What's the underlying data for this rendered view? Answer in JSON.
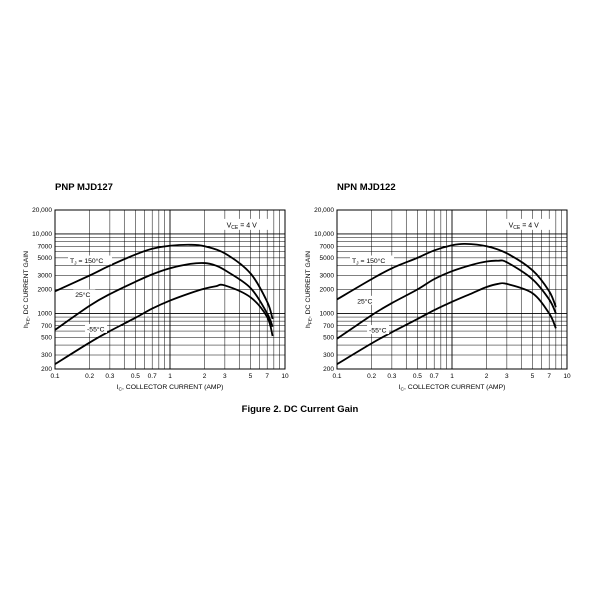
{
  "figure_caption": "Figure 2. DC Current Gain",
  "chart_data": [
    {
      "type": "line",
      "title": "PNP MJD127",
      "xlabel_prefix": "I",
      "xlabel_sub": "C",
      "xlabel_rest": ", COLLECTOR CURRENT (AMP)",
      "ylabel_prefix": "h",
      "ylabel_sub": "FE",
      "ylabel_rest": ", DC CURRENT GAIN",
      "x_scale": "log",
      "y_scale": "log",
      "xlim": [
        0.1,
        10
      ],
      "ylim": [
        200,
        20000
      ],
      "x_ticks": [
        0.1,
        0.2,
        0.3,
        0.5,
        0.7,
        1,
        2,
        3,
        5,
        7,
        10
      ],
      "x_tick_labels": [
        "0.1",
        "0.2",
        "0.3",
        "0.5",
        "0.7",
        "1",
        "2",
        "3",
        "5",
        "7",
        "10"
      ],
      "y_ticks": [
        200,
        300,
        500,
        700,
        1000,
        2000,
        3000,
        5000,
        7000,
        10000,
        20000
      ],
      "y_tick_labels": [
        "200",
        "300",
        "500",
        "700",
        "1000",
        "2000",
        "3000",
        "5000",
        "7000",
        "10,000",
        "20,000"
      ],
      "grid": true,
      "condition_prefix": "V",
      "condition_sub": "CE",
      "condition_rest": " = 4 V",
      "series": [
        {
          "name": "T_J = 150°C",
          "label_prefix": "T",
          "label_sub": "J",
          "label_rest": " = 150°C",
          "label_at": [
            0.135,
            4500
          ],
          "points": [
            [
              0.1,
              1900
            ],
            [
              0.2,
              3000
            ],
            [
              0.3,
              4000
            ],
            [
              0.5,
              5500
            ],
            [
              0.7,
              6500
            ],
            [
              1,
              7100
            ],
            [
              1.5,
              7300
            ],
            [
              2,
              7000
            ],
            [
              3,
              5700
            ],
            [
              5,
              3200
            ],
            [
              7,
              1400
            ],
            [
              7.8,
              850
            ]
          ]
        },
        {
          "name": "25°C",
          "label_prefix": "25°C",
          "label_sub": "",
          "label_rest": "",
          "label_at": [
            0.15,
            1680
          ],
          "points": [
            [
              0.1,
              620
            ],
            [
              0.2,
              1250
            ],
            [
              0.3,
              1750
            ],
            [
              0.5,
              2500
            ],
            [
              0.7,
              3100
            ],
            [
              1,
              3700
            ],
            [
              1.5,
              4200
            ],
            [
              2,
              4300
            ],
            [
              2.5,
              4000
            ],
            [
              3,
              3500
            ],
            [
              5,
              2100
            ],
            [
              7,
              1000
            ],
            [
              7.8,
              680
            ]
          ]
        },
        {
          "name": "-55°C",
          "label_prefix": "-55°C",
          "label_sub": "",
          "label_rest": "",
          "label_at": [
            0.19,
            620
          ],
          "points": [
            [
              0.1,
              230
            ],
            [
              0.2,
              430
            ],
            [
              0.3,
              600
            ],
            [
              0.5,
              880
            ],
            [
              0.7,
              1150
            ],
            [
              1,
              1450
            ],
            [
              1.5,
              1800
            ],
            [
              2,
              2050
            ],
            [
              2.5,
              2200
            ],
            [
              3,
              2250
            ],
            [
              5,
              1600
            ],
            [
              7,
              900
            ],
            [
              7.8,
              520
            ]
          ]
        }
      ]
    },
    {
      "type": "line",
      "title": "NPN MJD122",
      "xlabel_prefix": "I",
      "xlabel_sub": "C",
      "xlabel_rest": ", COLLECTOR CURRENT (AMP)",
      "ylabel_prefix": "h",
      "ylabel_sub": "FE",
      "ylabel_rest": ", DC CURRENT GAIN",
      "x_scale": "log",
      "y_scale": "log",
      "xlim": [
        0.1,
        10
      ],
      "ylim": [
        200,
        20000
      ],
      "x_ticks": [
        0.1,
        0.2,
        0.3,
        0.5,
        0.7,
        1,
        2,
        3,
        5,
        7,
        10
      ],
      "x_tick_labels": [
        "0.1",
        "0.2",
        "0.3",
        "0.5",
        "0.7",
        "1",
        "2",
        "3",
        "5",
        "7",
        "10"
      ],
      "y_ticks": [
        200,
        300,
        500,
        700,
        1000,
        2000,
        3000,
        5000,
        7000,
        10000,
        20000
      ],
      "y_tick_labels": [
        "200",
        "300",
        "500",
        "700",
        "1000",
        "2000",
        "3000",
        "5000",
        "7000",
        "10,000",
        "20,000"
      ],
      "grid": true,
      "condition_prefix": "V",
      "condition_sub": "CE",
      "condition_rest": " = 4 V",
      "series": [
        {
          "name": "T_J = 150°C",
          "label_prefix": "T",
          "label_sub": "J",
          "label_rest": " = 150°C",
          "label_at": [
            0.135,
            4500
          ],
          "points": [
            [
              0.1,
              1500
            ],
            [
              0.2,
              2700
            ],
            [
              0.3,
              3700
            ],
            [
              0.5,
              5000
            ],
            [
              0.7,
              6200
            ],
            [
              1,
              7200
            ],
            [
              1.3,
              7500
            ],
            [
              2,
              7000
            ],
            [
              3,
              5700
            ],
            [
              5,
              3500
            ],
            [
              7,
              1900
            ],
            [
              8,
              1200
            ]
          ]
        },
        {
          "name": "25°C",
          "label_prefix": "25°C",
          "label_sub": "",
          "label_rest": "",
          "label_at": [
            0.15,
            1400
          ],
          "points": [
            [
              0.1,
              480
            ],
            [
              0.2,
              950
            ],
            [
              0.3,
              1350
            ],
            [
              0.5,
              2000
            ],
            [
              0.7,
              2700
            ],
            [
              1,
              3400
            ],
            [
              1.5,
              4100
            ],
            [
              2,
              4500
            ],
            [
              2.5,
              4600
            ],
            [
              3,
              4400
            ],
            [
              5,
              2700
            ],
            [
              7,
              1500
            ],
            [
              8,
              1000
            ]
          ]
        },
        {
          "name": "-55°C",
          "label_prefix": "-55°C",
          "label_sub": "",
          "label_rest": "",
          "label_at": [
            0.19,
            600
          ],
          "points": [
            [
              0.1,
              230
            ],
            [
              0.2,
              420
            ],
            [
              0.3,
              580
            ],
            [
              0.5,
              850
            ],
            [
              0.7,
              1100
            ],
            [
              1,
              1400
            ],
            [
              1.5,
              1800
            ],
            [
              2,
              2150
            ],
            [
              2.5,
              2350
            ],
            [
              3,
              2350
            ],
            [
              5,
              1800
            ],
            [
              7,
              1000
            ],
            [
              8,
              650
            ]
          ]
        }
      ]
    }
  ]
}
